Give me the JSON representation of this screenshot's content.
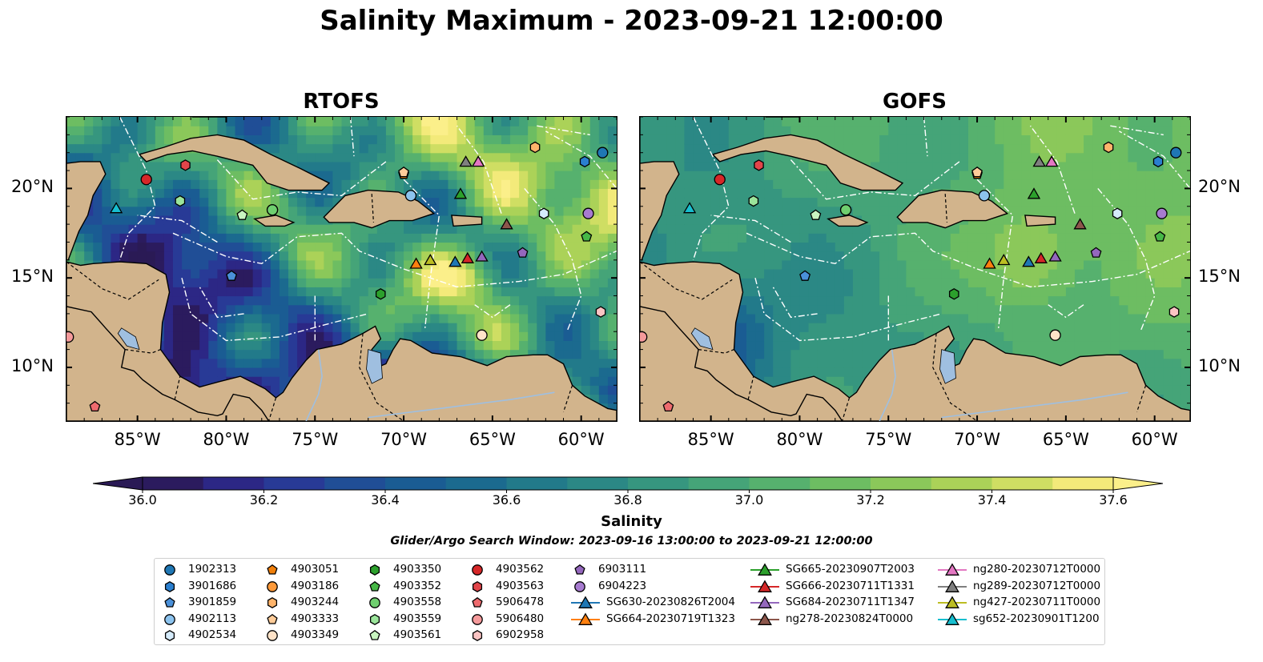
{
  "figure": {
    "title": "Salinity Maximum - 2023-09-21 12:00:00",
    "panels": [
      {
        "id": "rtofs",
        "title": "RTOFS"
      },
      {
        "id": "gofs",
        "title": "GOFS"
      }
    ],
    "map": {
      "lon_range": [
        -89,
        -58
      ],
      "lat_range": [
        7,
        24
      ],
      "x_ticks": [
        "85°W",
        "80°W",
        "75°W",
        "70°W",
        "65°W",
        "60°W"
      ],
      "x_tick_values": [
        -85,
        -80,
        -75,
        -70,
        -65,
        -60
      ],
      "y_ticks": [
        "20°N",
        "15°N",
        "10°N"
      ],
      "y_tick_values": [
        20,
        15,
        10
      ],
      "land_color": "#d2b48c",
      "lake_color": "#9fbfe0"
    },
    "colorbar": {
      "label": "Salinity",
      "min": 36.0,
      "max": 37.6,
      "step": 0.1,
      "tick_labels": [
        "36.0",
        "36.2",
        "36.4",
        "36.6",
        "36.8",
        "37.0",
        "37.2",
        "37.4",
        "37.6"
      ],
      "tick_values": [
        36.0,
        36.2,
        36.4,
        36.6,
        36.8,
        37.0,
        37.2,
        37.4,
        37.6
      ],
      "colormap": "haline",
      "extend": "both"
    },
    "search_window": "Glider/Argo Search Window: 2023-09-16 13:00:00 to 2023-09-21 12:00:00"
  },
  "legend": {
    "columns": [
      [
        {
          "label": "1902313",
          "marker": "circle",
          "color": "#1f77b4"
        },
        {
          "label": "3901686",
          "marker": "hexagon",
          "color": "#2a7fcf"
        },
        {
          "label": "3901859",
          "marker": "pentagon",
          "color": "#4a90d9"
        },
        {
          "label": "4902113",
          "marker": "circle",
          "color": "#8cc3ee"
        },
        {
          "label": "4902534",
          "marker": "hexagon",
          "color": "#d5ebfb"
        }
      ],
      [
        {
          "label": "4903051",
          "marker": "pentagon",
          "color": "#f07f0b"
        },
        {
          "label": "4903186",
          "marker": "circle",
          "color": "#ff9a3a"
        },
        {
          "label": "4903244",
          "marker": "hexagon",
          "color": "#ffb46b"
        },
        {
          "label": "4903333",
          "marker": "pentagon",
          "color": "#ffcc99"
        },
        {
          "label": "4903349",
          "marker": "circle",
          "color": "#ffe3c8"
        }
      ],
      [
        {
          "label": "4903350",
          "marker": "hexagon",
          "color": "#2ca02c"
        },
        {
          "label": "4903352",
          "marker": "pentagon",
          "color": "#47b847"
        },
        {
          "label": "4903558",
          "marker": "circle",
          "color": "#6fcf6f"
        },
        {
          "label": "4903559",
          "marker": "hexagon",
          "color": "#9be59b"
        },
        {
          "label": "4903561",
          "marker": "pentagon",
          "color": "#c9f5c0"
        }
      ],
      [
        {
          "label": "4903562",
          "marker": "circle",
          "color": "#d62728"
        },
        {
          "label": "4903563",
          "marker": "hexagon",
          "color": "#e2454a"
        },
        {
          "label": "5906478",
          "marker": "pentagon",
          "color": "#ee6b6e"
        },
        {
          "label": "5906480",
          "marker": "circle",
          "color": "#f59a9b"
        },
        {
          "label": "6902958",
          "marker": "hexagon",
          "color": "#fbc4c3"
        }
      ],
      [
        {
          "label": "6903111",
          "marker": "pentagon",
          "color": "#9467bd"
        },
        {
          "label": "6904223",
          "marker": "circle",
          "color": "#a77bd0"
        },
        {
          "label": "SG630-20230826T2004",
          "marker": "triangle",
          "color": "#1f77b4",
          "line": true
        },
        {
          "label": "SG664-20230719T1323",
          "marker": "triangle",
          "color": "#ff7f0e",
          "line": true
        }
      ],
      [
        {
          "label": "SG665-20230907T2003",
          "marker": "triangle",
          "color": "#2ca02c",
          "line": true
        },
        {
          "label": "SG666-20230711T1331",
          "marker": "triangle",
          "color": "#d62728",
          "line": true
        },
        {
          "label": "SG684-20230711T1347",
          "marker": "triangle",
          "color": "#9467bd",
          "line": true
        },
        {
          "label": "ng278-20230824T0000",
          "marker": "triangle",
          "color": "#8c564b",
          "line": true
        }
      ],
      [
        {
          "label": "ng280-20230712T0000",
          "marker": "triangle",
          "color": "#e377c2",
          "line": true
        },
        {
          "label": "ng289-20230712T0000",
          "marker": "triangle",
          "color": "#7f7f7f",
          "line": true
        },
        {
          "label": "ng427-20230711T0000",
          "marker": "triangle",
          "color": "#bcbd22",
          "line": true
        },
        {
          "label": "sg652-20230901T1200",
          "marker": "triangle",
          "color": "#17becf",
          "line": true
        }
      ]
    ]
  },
  "observations": [
    {
      "id": "1902313",
      "lon": -58.8,
      "lat": 22.0
    },
    {
      "id": "3901686",
      "lon": -59.8,
      "lat": 21.5
    },
    {
      "id": "3901859",
      "lon": -79.7,
      "lat": 15.1
    },
    {
      "id": "4902113",
      "lon": -69.6,
      "lat": 19.6
    },
    {
      "id": "4902534",
      "lon": -62.1,
      "lat": 18.6
    },
    {
      "id": "4903051",
      "lon": -70.0,
      "lat": 20.8
    },
    {
      "id": "4903186",
      "lon": -77.4,
      "lat": 18.8
    },
    {
      "id": "4903244",
      "lon": -62.6,
      "lat": 22.3
    },
    {
      "id": "4903333",
      "lon": -70.0,
      "lat": 20.9
    },
    {
      "id": "4903349",
      "lon": -65.6,
      "lat": 11.8
    },
    {
      "id": "4903350",
      "lon": -71.3,
      "lat": 14.1
    },
    {
      "id": "4903352",
      "lon": -59.7,
      "lat": 17.3
    },
    {
      "id": "4903558",
      "lon": -77.4,
      "lat": 18.8
    },
    {
      "id": "4903559",
      "lon": -82.6,
      "lat": 19.3
    },
    {
      "id": "4903561",
      "lon": -79.1,
      "lat": 18.5
    },
    {
      "id": "4903562",
      "lon": -84.5,
      "lat": 20.5
    },
    {
      "id": "4903563",
      "lon": -82.3,
      "lat": 21.3
    },
    {
      "id": "5906478",
      "lon": -87.4,
      "lat": 7.8
    },
    {
      "id": "5906480",
      "lon": -88.9,
      "lat": 11.7
    },
    {
      "id": "6902958",
      "lon": -58.9,
      "lat": 13.1
    },
    {
      "id": "6903111",
      "lon": -63.3,
      "lat": 16.4
    },
    {
      "id": "6904223",
      "lon": -59.6,
      "lat": 18.6
    },
    {
      "id": "SG630-20230826T2004",
      "lon": -67.1,
      "lat": 15.9
    },
    {
      "id": "SG664-20230719T1323",
      "lon": -69.3,
      "lat": 15.8
    },
    {
      "id": "SG665-20230907T2003",
      "lon": -66.8,
      "lat": 19.7
    },
    {
      "id": "SG666-20230711T1331",
      "lon": -66.4,
      "lat": 16.1
    },
    {
      "id": "SG684-20230711T1347",
      "lon": -65.6,
      "lat": 16.2
    },
    {
      "id": "ng278-20230824T0000",
      "lon": -64.2,
      "lat": 18.0
    },
    {
      "id": "ng280-20230712T0000",
      "lon": -65.8,
      "lat": 21.5
    },
    {
      "id": "ng289-20230712T0000",
      "lon": -66.5,
      "lat": 21.5
    },
    {
      "id": "ng427-20230711T0000",
      "lon": -68.5,
      "lat": 16.0
    },
    {
      "id": "sg652-20230901T1200",
      "lon": -86.2,
      "lat": 18.9
    }
  ]
}
